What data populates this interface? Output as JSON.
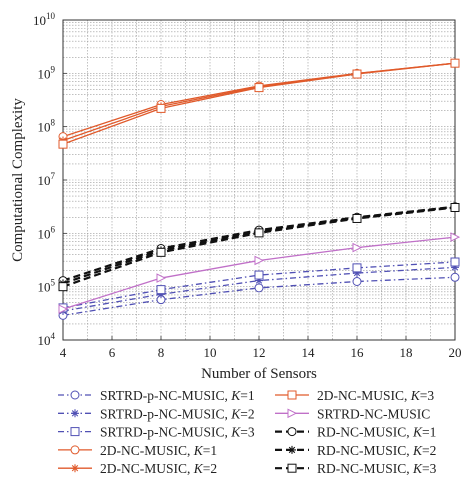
{
  "chart_data": {
    "type": "line",
    "title": "",
    "xlabel": "Number of Sensors",
    "ylabel": "Computational Complexity",
    "xlim": [
      4,
      20
    ],
    "ylim": [
      10000,
      10000000000
    ],
    "yscale": "log",
    "grid": true,
    "x_ticks": [
      "4",
      "6",
      "8",
      "10",
      "12",
      "14",
      "16",
      "18",
      "20"
    ],
    "y_ticks": [
      {
        "base": "10",
        "exp": "4"
      },
      {
        "base": "10",
        "exp": "5"
      },
      {
        "base": "10",
        "exp": "6"
      },
      {
        "base": "10",
        "exp": "7"
      },
      {
        "base": "10",
        "exp": "8"
      },
      {
        "base": "10",
        "exp": "9"
      },
      {
        "base": "10",
        "exp": "10"
      }
    ],
    "legend_position": "bottom",
    "x": [
      4,
      8,
      12,
      16,
      20
    ],
    "series": [
      {
        "label": "SRTRD-p-NC-MUSIC, ",
        "k": "K",
        "kval": "=1",
        "color": "#5050b4",
        "dash": "dashdot",
        "marker": "circle",
        "values": [
          29000,
          57000,
          95000,
          125000,
          150000
        ]
      },
      {
        "label": "SRTRD-p-NC-MUSIC, ",
        "k": "K",
        "kval": "=2",
        "color": "#5050b4",
        "dash": "dashdot",
        "marker": "asterisk",
        "values": [
          35000,
          72000,
          130000,
          180000,
          230000
        ]
      },
      {
        "label": "SRTRD-p-NC-MUSIC, ",
        "k": "K",
        "kval": "=3",
        "color": "#5050b4",
        "dash": "dashdot",
        "marker": "square",
        "values": [
          40000,
          88000,
          165000,
          225000,
          290000
        ]
      },
      {
        "label": "2D-NC-MUSIC, ",
        "k": "K",
        "kval": "=1",
        "color": "#e05a2b",
        "dash": "solid",
        "marker": "circle",
        "values": [
          65000000,
          260000000,
          580000000,
          1000000000,
          1550000000
        ]
      },
      {
        "label": "2D-NC-MUSIC, ",
        "k": "K",
        "kval": "=2",
        "color": "#e05a2b",
        "dash": "solid",
        "marker": "asterisk",
        "values": [
          55000000,
          240000000,
          560000000,
          990000000,
          1550000000
        ]
      },
      {
        "label": "2D-NC-MUSIC, ",
        "k": "K",
        "kval": "=3",
        "color": "#e05a2b",
        "dash": "solid",
        "marker": "square",
        "values": [
          47000000,
          220000000,
          540000000,
          970000000,
          1550000000
        ]
      },
      {
        "label": "SRTRD-NC-MUSIC",
        "k": "",
        "kval": "",
        "color": "#c070c8",
        "dash": "solid",
        "marker": "triangle-right",
        "values": [
          38000,
          145000,
          310000,
          540000,
          850000
        ]
      },
      {
        "label": "RD-NC-MUSIC, ",
        "k": "K",
        "kval": "=1",
        "color": "#111111",
        "dash": "dashed",
        "marker": "circle",
        "values": [
          130000,
          520000,
          1150000,
          2000000,
          3150000
        ]
      },
      {
        "label": "RD-NC-MUSIC, ",
        "k": "K",
        "kval": "=2",
        "color": "#111111",
        "dash": "dashed",
        "marker": "asterisk",
        "values": [
          115000,
          480000,
          1080000,
          1950000,
          3100000
        ]
      },
      {
        "label": "RD-NC-MUSIC, ",
        "k": "K",
        "kval": "=3",
        "color": "#111111",
        "dash": "dashed",
        "marker": "square",
        "values": [
          100000,
          440000,
          1020000,
          1900000,
          3050000
        ]
      }
    ]
  }
}
